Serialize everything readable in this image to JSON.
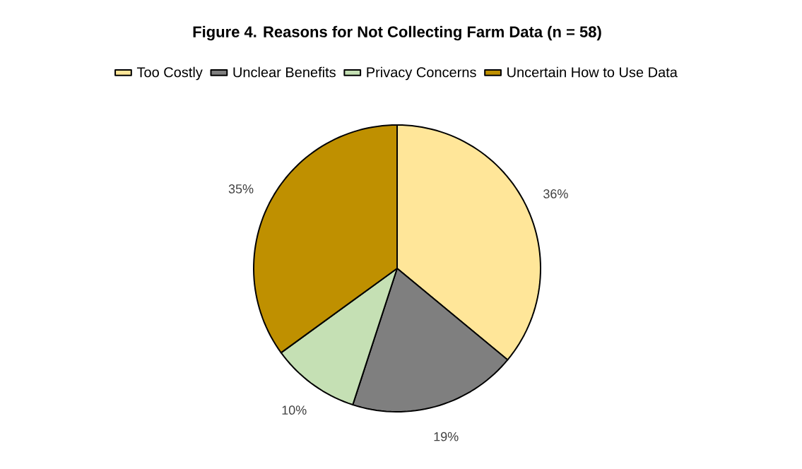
{
  "chart_data": {
    "type": "pie",
    "title": "Figure 4. Reasons for Not Collecting Farm Data (n = 58)",
    "categories": [
      "Too Costly",
      "Unclear Benefits",
      "Privacy Concerns",
      "Uncertain How to Use Data"
    ],
    "values": [
      36,
      19,
      10,
      35
    ],
    "colors": [
      "#ffe699",
      "#7f7f7f",
      "#c5e0b4",
      "#bf9000"
    ],
    "value_labels": [
      "36%",
      "19%",
      "10%",
      "35%"
    ],
    "legend": "top"
  }
}
